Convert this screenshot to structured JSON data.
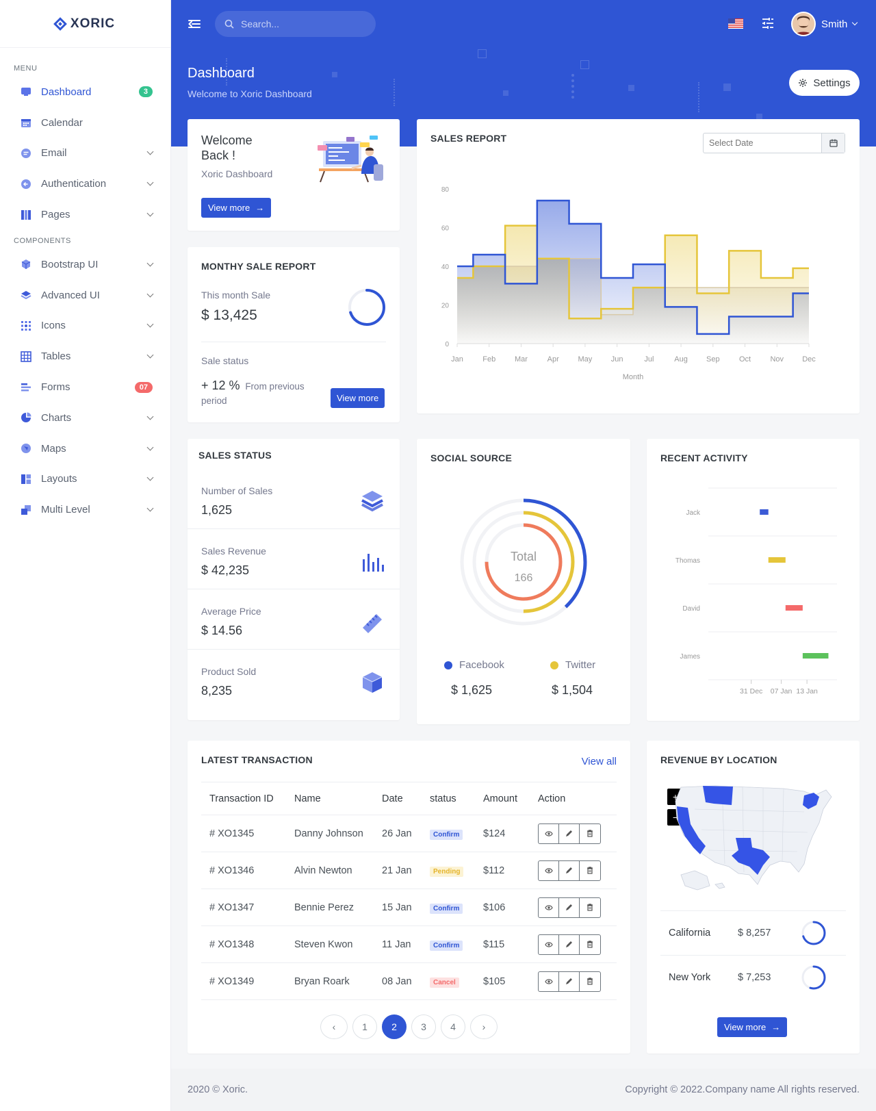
{
  "brand": {
    "name": "XORIC"
  },
  "sidebar": {
    "menu_title": "MENU",
    "components_title": "COMPONENTS",
    "items": [
      {
        "label": "Dashboard",
        "icon": "dashboard-icon",
        "badge": "3",
        "badge_color": "#34c38f",
        "active": true
      },
      {
        "label": "Calendar",
        "icon": "calendar-icon"
      },
      {
        "label": "Email",
        "icon": "email-icon",
        "chevron": true
      },
      {
        "label": "Authentication",
        "icon": "authentication-icon",
        "chevron": true
      },
      {
        "label": "Pages",
        "icon": "pages-icon",
        "chevron": true
      }
    ],
    "components": [
      {
        "label": "Bootstrap UI",
        "icon": "bootstrap-icon",
        "chevron": true
      },
      {
        "label": "Advanced UI",
        "icon": "advanced-icon",
        "chevron": true
      },
      {
        "label": "Icons",
        "icon": "icons-icon",
        "chevron": true
      },
      {
        "label": "Tables",
        "icon": "tables-icon",
        "chevron": true
      },
      {
        "label": "Forms",
        "icon": "forms-icon",
        "badge": "07",
        "badge_color": "#f46a6a"
      },
      {
        "label": "Charts",
        "icon": "charts-icon",
        "chevron": true
      },
      {
        "label": "Maps",
        "icon": "maps-icon",
        "chevron": true
      },
      {
        "label": "Layouts",
        "icon": "layouts-icon",
        "chevron": true
      },
      {
        "label": "Multi Level",
        "icon": "multilevel-icon",
        "chevron": true
      }
    ]
  },
  "header": {
    "search_placeholder": "Search...",
    "user_name": "Smith",
    "page_title": "Dashboard",
    "page_subtitle": "Welcome to Xoric Dashboard",
    "settings_label": "Settings"
  },
  "welcome": {
    "title": "Welcome Back !",
    "subtitle": "Xoric Dashboard",
    "button": "View more"
  },
  "monthly": {
    "title": "MONTHY SALE REPORT",
    "this_month_label": "This month Sale",
    "this_month_value": "$ 13,425",
    "progress": 0.7,
    "status_label": "Sale status",
    "status_change": "+ 12 %",
    "status_text_1": "From previous",
    "status_text_2": "period",
    "button": "View more"
  },
  "sales_report": {
    "title": "SALES REPORT",
    "date_placeholder": "Select Date"
  },
  "chart_data": [
    {
      "type": "area",
      "title": "SALES REPORT",
      "xlabel": "Month",
      "ylabel": "",
      "categories": [
        "Jan",
        "Feb",
        "Mar",
        "Apr",
        "May",
        "Jun",
        "Jul",
        "Aug",
        "Sep",
        "Oct",
        "Nov",
        "Dec"
      ],
      "ylim": [
        0,
        80
      ],
      "yticks": [
        0,
        20,
        40,
        60,
        80
      ],
      "step": true,
      "series": [
        {
          "values": [
            40,
            46,
            31,
            74,
            62,
            34,
            41,
            19,
            5,
            14,
            14,
            26
          ],
          "color": "#2f55d4"
        },
        {
          "values": [
            34,
            40,
            61,
            44,
            13,
            18,
            29,
            56,
            26,
            48,
            34,
            39
          ],
          "color": "#e5c53a"
        },
        {
          "values": [
            34,
            40,
            40,
            44,
            44,
            15,
            29,
            29,
            29,
            29,
            29,
            29
          ],
          "color": "#d8c9a8"
        }
      ]
    },
    {
      "type": "pie",
      "title": "SOCIAL SOURCE",
      "center_label": "Total",
      "center_value": "166",
      "rings": [
        {
          "value": 0.38,
          "color": "#2f55d4"
        },
        {
          "value": 0.5,
          "color": "#e5c53a"
        },
        {
          "value": 0.75,
          "color": "#ef7b5c"
        }
      ]
    },
    {
      "type": "bar",
      "title": "RECENT ACTIVITY",
      "categories": [
        "Jack",
        "Thomas",
        "David",
        "James"
      ],
      "x_ticks": [
        "31 Dec",
        "07 Jan",
        "13 Jan"
      ],
      "x_tick_days": [
        0,
        7,
        13
      ],
      "xlim": [
        -10,
        20
      ],
      "series": [
        {
          "start": [
            2,
            4,
            8,
            12
          ],
          "end": [
            4,
            8,
            12,
            18
          ],
          "colors": [
            "#3c5bd6",
            "#e5c53a",
            "#f46a6a",
            "#5cc25c"
          ]
        }
      ]
    }
  ],
  "sales_status": {
    "title": "SALES STATUS",
    "items": [
      {
        "label": "Number of Sales",
        "value": "1,625",
        "icon": "layers-icon"
      },
      {
        "label": "Sales Revenue",
        "value": "$ 42,235",
        "icon": "bar-chart-icon"
      },
      {
        "label": "Average Price",
        "value": "$ 14.56",
        "icon": "ruler-icon"
      },
      {
        "label": "Product Sold",
        "value": "8,235",
        "icon": "cube-icon"
      }
    ]
  },
  "social": {
    "title": "SOCIAL SOURCE",
    "sources": [
      {
        "name": "Facebook",
        "value": "$ 1,625",
        "color": "#2f55d4"
      },
      {
        "name": "Twitter",
        "value": "$ 1,504",
        "color": "#e5c53a"
      }
    ]
  },
  "activity": {
    "title": "RECENT ACTIVITY"
  },
  "transactions": {
    "title": "LATEST TRANSACTION",
    "view_all": "View all",
    "columns": [
      "Transaction ID",
      "Name",
      "Date",
      "status",
      "Amount",
      "Action"
    ],
    "rows": [
      {
        "id": "# XO1345",
        "name": "Danny Johnson",
        "date": "26 Jan",
        "status": "Confirm",
        "amount": "$124"
      },
      {
        "id": "# XO1346",
        "name": "Alvin Newton",
        "date": "21 Jan",
        "status": "Pending",
        "amount": "$112"
      },
      {
        "id": "# XO1347",
        "name": "Bennie Perez",
        "date": "15 Jan",
        "status": "Confirm",
        "amount": "$106"
      },
      {
        "id": "# XO1348",
        "name": "Steven Kwon",
        "date": "11 Jan",
        "status": "Confirm",
        "amount": "$115"
      },
      {
        "id": "# XO1349",
        "name": "Bryan Roark",
        "date": "08 Jan",
        "status": "Cancel",
        "amount": "$105"
      }
    ],
    "status_colors": {
      "Confirm": {
        "bg": "#dce3fb",
        "fg": "#2f55d4"
      },
      "Pending": {
        "bg": "#fcf3d4",
        "fg": "#e5b42a"
      },
      "Cancel": {
        "bg": "#fde1e1",
        "fg": "#f46a6a"
      }
    },
    "pages": [
      "1",
      "2",
      "3",
      "4"
    ],
    "current_page": "2",
    "prev": "‹",
    "next": "›"
  },
  "revenue": {
    "title": "REVENUE BY LOCATION",
    "zoom_in": "+",
    "zoom_out": "−",
    "locations": [
      {
        "name": "California",
        "value": "$ 8,257",
        "progress": 0.7
      },
      {
        "name": "New York",
        "value": "$ 7,253",
        "progress": 0.55
      }
    ],
    "button": "View more"
  },
  "footer": {
    "left": "2020 © Xoric.",
    "right": "Copyright © 2022.Company name All rights reserved."
  },
  "colors": {
    "primary": "#2f55d4",
    "yellow": "#e5c53a",
    "red": "#f46a6a",
    "green": "#34c38f"
  }
}
